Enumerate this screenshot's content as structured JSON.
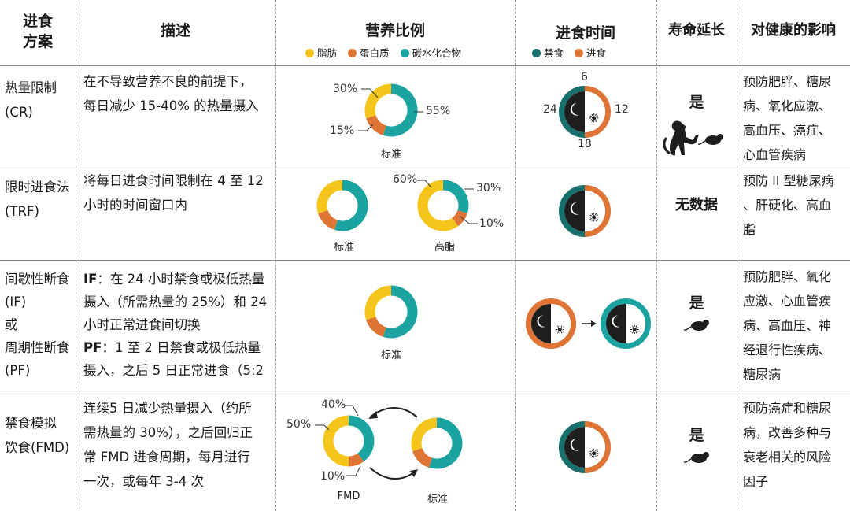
{
  "colors": {
    "fat": "#f5c51b",
    "protein": "#de7435",
    "carb": "#1aa3a0",
    "fasting": "#17706c",
    "eating": "#de7435",
    "dark": "#1e1e1e"
  },
  "header": {
    "col1_line1": "进食",
    "col1_line2": "方案",
    "col2": "描述",
    "col3": "营养比例",
    "col4": "进食时间",
    "col5": "寿命延长",
    "col6": "对健康的影响"
  },
  "legend_nutrition": {
    "fat": "脂肪",
    "protein": "蛋白质",
    "carb": "碳水化合物"
  },
  "legend_timing": {
    "fasting": "禁食",
    "eating": "进食"
  },
  "rows": [
    {
      "name_lines": [
        "热量限制",
        "(CR)"
      ],
      "desc_lines": [
        "在不导致营养不良的前提下，",
        "每日减少 15-40% 的热量摄入"
      ],
      "chart_caption": "标准",
      "labels": {
        "fat": "30%",
        "protein": "15%",
        "carb": "55%"
      },
      "clock": {
        "top": "6",
        "right": "12",
        "bottom": "18",
        "left": "24"
      },
      "lifespan": "是",
      "health_lines": [
        "预防肥胖、糖尿",
        "病、氧化应激、",
        "高血压、癌症、",
        "心血管疾病"
      ]
    },
    {
      "name_lines": [
        "限时进食法",
        "(TRF)"
      ],
      "desc_lines": [
        "将每日进食时间限制在 4 至 12",
        "小时的时间窗口内"
      ],
      "chart_caption_1": "标准",
      "chart_caption_2": "高脂",
      "labels": {
        "fat": "60%",
        "carb": "30%",
        "protein": "10%"
      },
      "lifespan": "无数据",
      "health_lines": [
        "预防 II 型糖尿病",
        "、肝硬化、高血",
        "脂"
      ]
    },
    {
      "name_lines": [
        "间歇性断食",
        "(IF)",
        "或",
        "周期性断食",
        "(PF)"
      ],
      "desc_if_key": "IF",
      "desc_if_lines": [
        "：在 24 小时禁食或极低热量",
        "摄入（所需热量的 25%）和 24",
        "小时正常进食间切换"
      ],
      "desc_pf_key": "PF",
      "desc_pf_lines": [
        "：1 至 2 日禁食或极低热量",
        "摄入，之后 5 日正常进食（5:2"
      ],
      "chart_caption": "标准",
      "lifespan": "是",
      "health_lines": [
        "预防肥胖、氧化",
        "应激、心血管疾",
        "病、高血压、神",
        "经退行性疾病、",
        "糖尿病"
      ]
    },
    {
      "name_lines": [
        "禁食模拟",
        "饮食(FMD)"
      ],
      "desc_lines": [
        "连续5 日减少热量摄入（约所",
        "需热量的 30%），之后回归正",
        "常 FMD 进食周期，每月进行",
        "一次，或每年 3-4 次"
      ],
      "chart_caption_1": "FMD",
      "chart_caption_2": "标准",
      "labels": {
        "carb": "40%",
        "fat": "50%",
        "protein": "10%"
      },
      "lifespan": "是",
      "health_lines": [
        "预防癌症和糖尿",
        "病，改善多种与",
        "衰老相关的风险",
        "因子"
      ]
    }
  ]
}
